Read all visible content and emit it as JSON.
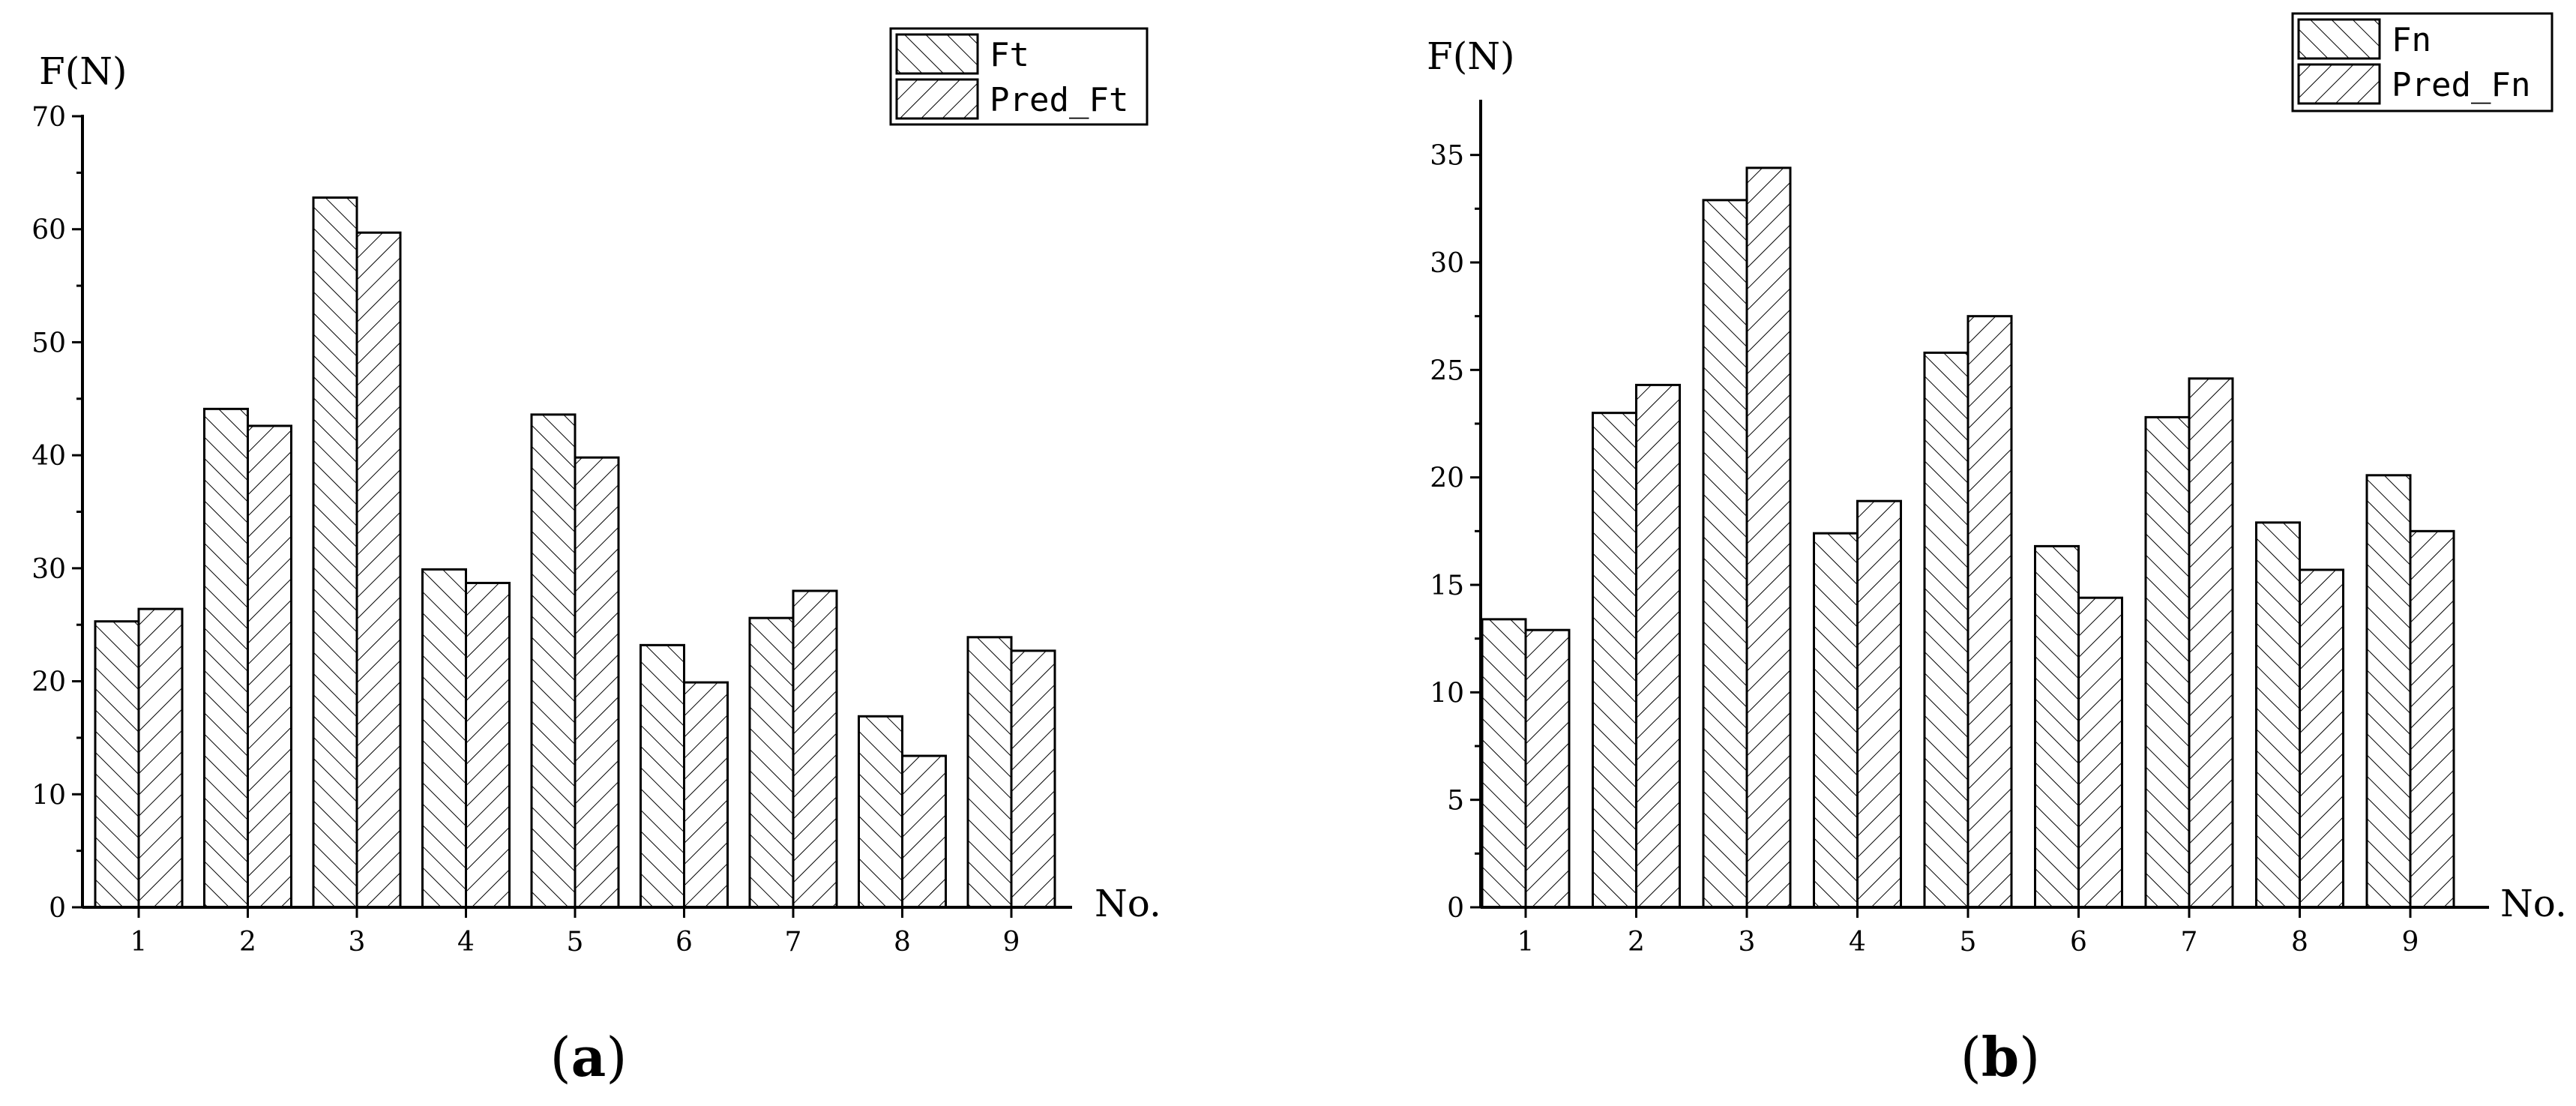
{
  "chart_data": [
    {
      "type": "bar",
      "panel_label": "a",
      "ylabel": "F(N)",
      "xlabel": "No.",
      "categories": [
        "1",
        "2",
        "3",
        "4",
        "5",
        "6",
        "7",
        "8",
        "9"
      ],
      "ylim": [
        0,
        70
      ],
      "yticks": [
        "0",
        "10",
        "20",
        "30",
        "40",
        "50",
        "60",
        "70"
      ],
      "legend_position": "top-right",
      "series": [
        {
          "name": "Ft",
          "hatch": "backslash",
          "values": [
            25.3,
            44.1,
            62.8,
            29.9,
            43.6,
            23.2,
            25.6,
            16.9,
            23.9
          ]
        },
        {
          "name": "Pred_Ft",
          "hatch": "slash",
          "values": [
            26.4,
            42.6,
            59.7,
            28.7,
            39.8,
            19.9,
            28.0,
            13.4,
            22.7
          ]
        }
      ]
    },
    {
      "type": "bar",
      "panel_label": "b",
      "ylabel": "F(N)",
      "xlabel": "No.",
      "categories": [
        "1",
        "2",
        "3",
        "4",
        "5",
        "6",
        "7",
        "8",
        "9"
      ],
      "ylim": [
        0,
        37.5
      ],
      "yticks": [
        "0",
        "5",
        "10",
        "15",
        "20",
        "25",
        "30",
        "35"
      ],
      "legend_position": "top-right",
      "series": [
        {
          "name": "Fn",
          "hatch": "backslash",
          "values": [
            13.4,
            23.0,
            32.9,
            17.4,
            25.8,
            16.8,
            22.8,
            17.9,
            20.1
          ]
        },
        {
          "name": "Pred_Fn",
          "hatch": "slash",
          "values": [
            12.9,
            24.3,
            34.4,
            18.9,
            27.5,
            14.4,
            24.6,
            15.7,
            17.5
          ]
        }
      ]
    }
  ]
}
